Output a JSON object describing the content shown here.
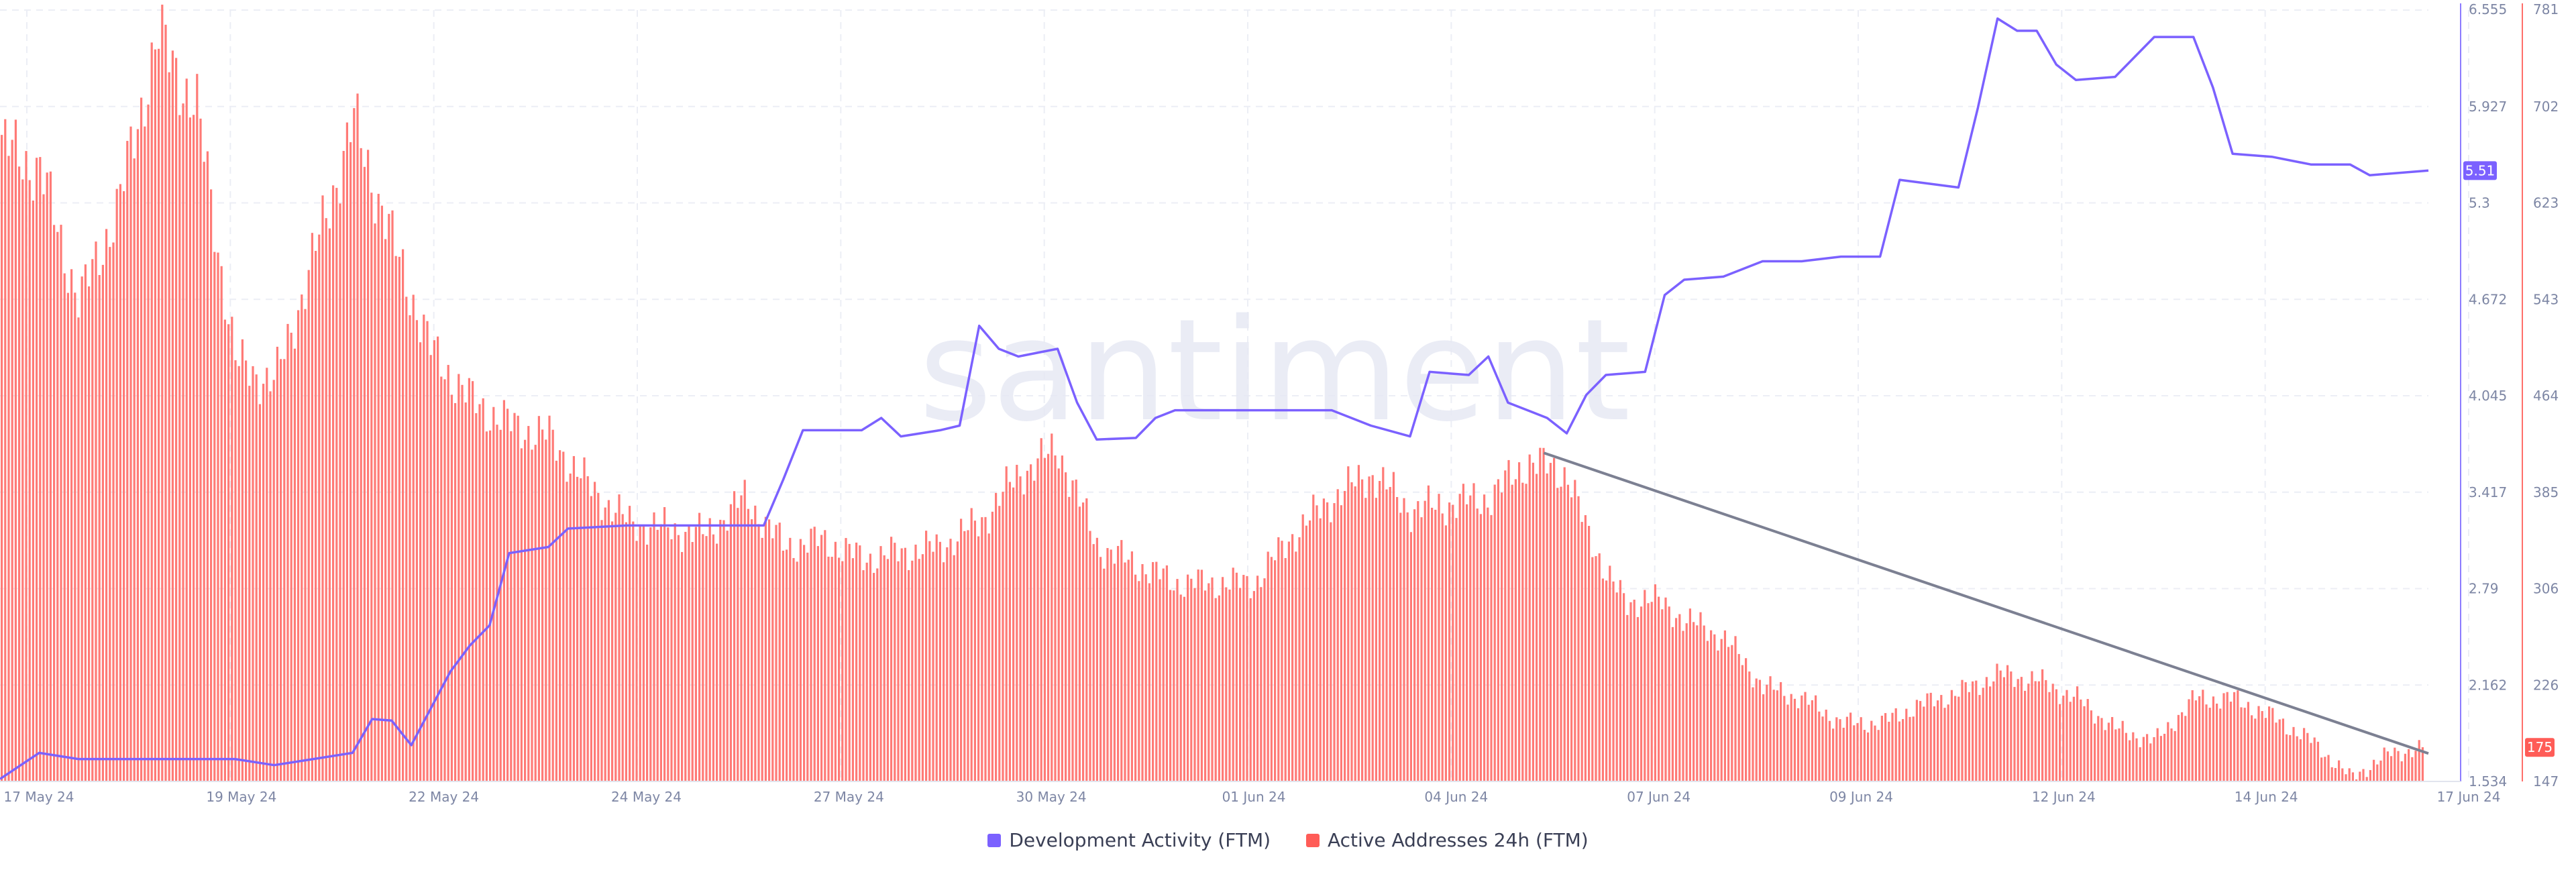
{
  "chart_data": {
    "type": "line",
    "title": "",
    "watermark": "santiment",
    "x_ticks": [
      "17 May 24",
      "19 May 24",
      "22 May 24",
      "24 May 24",
      "27 May 24",
      "30 May 24",
      "01 Jun 24",
      "04 Jun 24",
      "07 Jun 24",
      "09 Jun 24",
      "12 Jun 24",
      "14 Jun 24",
      "17 Jun 24"
    ],
    "x_range": [
      "2024-05-17",
      "2024-06-17"
    ],
    "grid": true,
    "legend_position": "bottom-center",
    "y_left": {
      "label": "",
      "range": [
        1.534,
        6.555
      ],
      "ticks": [
        "6.555",
        "5.927",
        "5.3",
        "4.672",
        "4.045",
        "3.417",
        "2.79",
        "2.162",
        "1.534"
      ]
    },
    "y_right": {
      "label": "",
      "range": [
        147,
        781
      ],
      "ticks": [
        "781",
        "702",
        "623",
        "543",
        "464",
        "385",
        "306",
        "226",
        "147"
      ]
    },
    "series": [
      {
        "name": "Development Activity (FTM)",
        "type": "line",
        "axis": "left",
        "color": "#7b61ff",
        "last_value_label": "5.51",
        "points": [
          [
            "2024-05-17",
            1.55
          ],
          [
            "2024-05-17T12:00",
            1.72
          ],
          [
            "2024-05-18",
            1.68
          ],
          [
            "2024-05-19",
            1.68
          ],
          [
            "2024-05-20",
            1.68
          ],
          [
            "2024-05-20T12:00",
            1.64
          ],
          [
            "2024-05-21",
            1.68
          ],
          [
            "2024-05-21T12:00",
            1.72
          ],
          [
            "2024-05-21T18:00",
            1.94
          ],
          [
            "2024-05-22",
            1.93
          ],
          [
            "2024-05-22T06:00",
            1.77
          ],
          [
            "2024-05-22T18:00",
            2.25
          ],
          [
            "2024-05-23",
            2.42
          ],
          [
            "2024-05-23T06:00",
            2.55
          ],
          [
            "2024-05-23T12:00",
            3.02
          ],
          [
            "2024-05-24",
            3.06
          ],
          [
            "2024-05-24T06:00",
            3.18
          ],
          [
            "2024-05-25",
            3.2
          ],
          [
            "2024-05-26",
            3.2
          ],
          [
            "2024-05-26T18:00",
            3.2
          ],
          [
            "2024-05-27",
            3.5
          ],
          [
            "2024-05-27T06:00",
            3.82
          ],
          [
            "2024-05-28",
            3.82
          ],
          [
            "2024-05-28T06:00",
            3.9
          ],
          [
            "2024-05-28T12:00",
            3.78
          ],
          [
            "2024-05-29",
            3.82
          ],
          [
            "2024-05-29T06:00",
            3.85
          ],
          [
            "2024-05-29T12:00",
            4.5
          ],
          [
            "2024-05-29T18:00",
            4.35
          ],
          [
            "2024-05-30",
            4.3
          ],
          [
            "2024-05-30T12:00",
            4.35
          ],
          [
            "2024-05-30T18:00",
            4.0
          ],
          [
            "2024-05-31",
            3.76
          ],
          [
            "2024-05-31T12:00",
            3.77
          ],
          [
            "2024-05-31T18:00",
            3.9
          ],
          [
            "2024-06-01",
            3.95
          ],
          [
            "2024-06-02",
            3.95
          ],
          [
            "2024-06-03",
            3.95
          ],
          [
            "2024-06-03T12:00",
            3.85
          ],
          [
            "2024-06-04",
            3.78
          ],
          [
            "2024-06-04T06:00",
            4.2
          ],
          [
            "2024-06-04T18:00",
            4.18
          ],
          [
            "2024-06-05",
            4.3
          ],
          [
            "2024-06-05T06:00",
            4.0
          ],
          [
            "2024-06-05T18:00",
            3.9
          ],
          [
            "2024-06-06",
            3.8
          ],
          [
            "2024-06-06T06:00",
            4.05
          ],
          [
            "2024-06-06T12:00",
            4.18
          ],
          [
            "2024-06-07",
            4.2
          ],
          [
            "2024-06-07T06:00",
            4.7
          ],
          [
            "2024-06-07T12:00",
            4.8
          ],
          [
            "2024-06-08",
            4.82
          ],
          [
            "2024-06-08T12:00",
            4.92
          ],
          [
            "2024-06-09",
            4.92
          ],
          [
            "2024-06-09T12:00",
            4.95
          ],
          [
            "2024-06-10",
            4.95
          ],
          [
            "2024-06-10T06:00",
            5.45
          ],
          [
            "2024-06-11",
            5.4
          ],
          [
            "2024-06-11T06:00",
            5.92
          ],
          [
            "2024-06-11T12:00",
            6.5
          ],
          [
            "2024-06-11T18:00",
            6.42
          ],
          [
            "2024-06-12",
            6.42
          ],
          [
            "2024-06-12T06:00",
            6.2
          ],
          [
            "2024-06-12T12:00",
            6.1
          ],
          [
            "2024-06-13",
            6.12
          ],
          [
            "2024-06-13T06:00",
            6.25
          ],
          [
            "2024-06-13T12:00",
            6.38
          ],
          [
            "2024-06-14",
            6.38
          ],
          [
            "2024-06-14T06:00",
            6.05
          ],
          [
            "2024-06-14T12:00",
            5.62
          ],
          [
            "2024-06-15",
            5.6
          ],
          [
            "2024-06-15T12:00",
            5.55
          ],
          [
            "2024-06-16",
            5.55
          ],
          [
            "2024-06-16T06:00",
            5.48
          ],
          [
            "2024-06-17",
            5.51
          ]
        ]
      },
      {
        "name": "Active Addresses 24h (FTM)",
        "type": "bar",
        "axis": "right",
        "color": "#ff7a76",
        "last_value_label": "175",
        "points": [
          [
            "2024-05-17",
            670
          ],
          [
            "2024-05-17T12:00",
            650
          ],
          [
            "2024-05-18",
            540
          ],
          [
            "2024-05-18T12:00",
            620
          ],
          [
            "2024-05-19",
            760
          ],
          [
            "2024-05-19T12:00",
            700
          ],
          [
            "2024-05-20",
            490
          ],
          [
            "2024-05-20T12:00",
            475
          ],
          [
            "2024-05-21",
            580
          ],
          [
            "2024-05-21T12:00",
            690
          ],
          [
            "2024-05-22",
            590
          ],
          [
            "2024-05-22T12:00",
            500
          ],
          [
            "2024-05-23",
            460
          ],
          [
            "2024-05-23T12:00",
            440
          ],
          [
            "2024-05-24",
            430
          ],
          [
            "2024-05-24T12:00",
            390
          ],
          [
            "2024-05-25",
            360
          ],
          [
            "2024-05-26",
            350
          ],
          [
            "2024-05-26T12:00",
            380
          ],
          [
            "2024-05-27",
            340
          ],
          [
            "2024-05-27T12:00",
            345
          ],
          [
            "2024-05-28",
            330
          ],
          [
            "2024-05-29",
            340
          ],
          [
            "2024-05-29T12:00",
            360
          ],
          [
            "2024-05-30",
            400
          ],
          [
            "2024-05-30T12:00",
            420
          ],
          [
            "2024-05-31",
            340
          ],
          [
            "2024-06-01",
            310
          ],
          [
            "2024-06-02",
            310
          ],
          [
            "2024-06-02T12:00",
            350
          ],
          [
            "2024-06-03",
            380
          ],
          [
            "2024-06-03T12:00",
            400
          ],
          [
            "2024-06-04",
            370
          ],
          [
            "2024-06-05",
            380
          ],
          [
            "2024-06-05T12:00",
            410
          ],
          [
            "2024-06-06",
            400
          ],
          [
            "2024-06-06T06:00",
            350
          ],
          [
            "2024-06-06T18:00",
            290
          ],
          [
            "2024-06-07",
            300
          ],
          [
            "2024-06-07T12:00",
            280
          ],
          [
            "2024-06-08",
            265
          ],
          [
            "2024-06-08T12:00",
            225
          ],
          [
            "2024-06-09",
            215
          ],
          [
            "2024-06-09T12:00",
            195
          ],
          [
            "2024-06-10",
            195
          ],
          [
            "2024-06-10T12:00",
            210
          ],
          [
            "2024-06-11",
            220
          ],
          [
            "2024-06-11T12:00",
            235
          ],
          [
            "2024-06-12",
            230
          ],
          [
            "2024-06-12T12:00",
            215
          ],
          [
            "2024-06-13",
            190
          ],
          [
            "2024-06-13T12:00",
            180
          ],
          [
            "2024-06-14",
            215
          ],
          [
            "2024-06-14T12:00",
            215
          ],
          [
            "2024-06-15",
            200
          ],
          [
            "2024-06-15T12:00",
            180
          ],
          [
            "2024-06-16",
            150
          ],
          [
            "2024-06-16T12:00",
            170
          ],
          [
            "2024-06-17",
            175
          ]
        ]
      }
    ],
    "trend_line": {
      "axis": "right",
      "color": "#7c8092",
      "from": [
        "2024-06-05T17:00",
        417
      ],
      "to": [
        "2024-06-17",
        170
      ]
    }
  }
}
